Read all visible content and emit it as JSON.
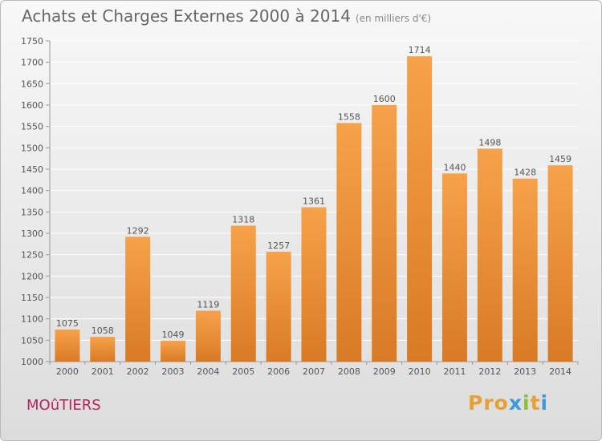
{
  "header": {
    "title": "Achats et Charges Externes 2000 à 2014",
    "units": "(en milliers d'€)"
  },
  "footer": {
    "commune": "MOûTIERS",
    "brand": "Proxiti",
    "brand_colors": [
      "#e8a033",
      "#e8a033",
      "#e8a033",
      "#3b9ad9",
      "#8fbf2a",
      "#e8a033",
      "#3b9ad9"
    ]
  },
  "colors": {
    "bar_light": "#f6a24a",
    "bar_dark": "#d97a25",
    "grid": "#ffffff",
    "text": "#555555"
  },
  "chart_data": {
    "type": "bar",
    "categories": [
      "2000",
      "2001",
      "2002",
      "2003",
      "2004",
      "2005",
      "2006",
      "2007",
      "2008",
      "2009",
      "2010",
      "2011",
      "2012",
      "2013",
      "2014"
    ],
    "values": [
      1075,
      1058,
      1292,
      1049,
      1119,
      1318,
      1257,
      1361,
      1558,
      1600,
      1714,
      1440,
      1498,
      1428,
      1459
    ],
    "ylim": [
      1000,
      1750
    ],
    "yticks": [
      1000,
      1050,
      1100,
      1150,
      1200,
      1250,
      1300,
      1350,
      1400,
      1450,
      1500,
      1550,
      1600,
      1650,
      1700,
      1750
    ],
    "grid": true,
    "data_labels": true
  }
}
